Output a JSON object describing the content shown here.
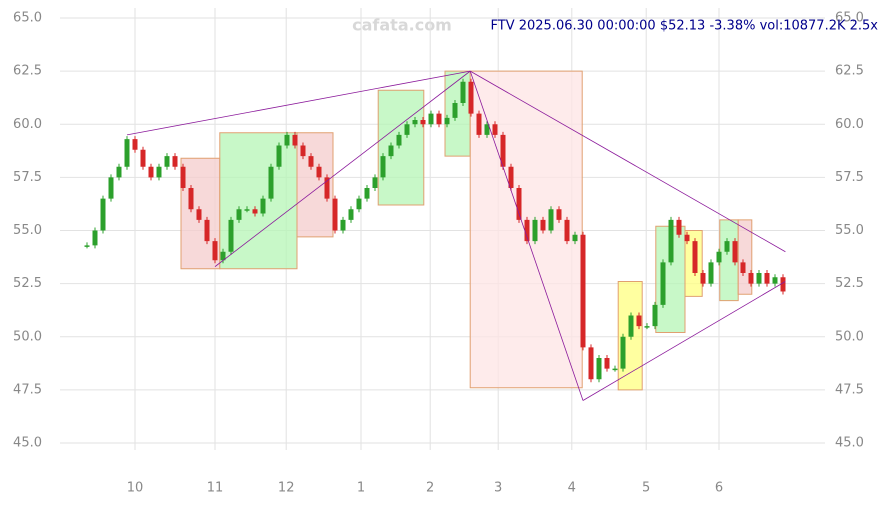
{
  "chart_data": {
    "type": "candlestick",
    "title": "FTV 2025.06.30 00:00:00 $52.13 -3.38% vol:10877.2K 2.5x",
    "watermark": "cafata.com",
    "up_color": "#2ca02c",
    "down_color": "#d62728",
    "closes": [
      54.3,
      55.0,
      56.5,
      57.5,
      58.0,
      59.3,
      58.8,
      58.0,
      57.5,
      58.0,
      58.5,
      58.0,
      57.0,
      56.0,
      55.5,
      54.5,
      53.6,
      54.0,
      55.5,
      56.0,
      56.0,
      55.8,
      56.5,
      58.0,
      59.0,
      59.5,
      59.0,
      58.5,
      58.0,
      57.5,
      56.5,
      55.0,
      55.5,
      56.0,
      56.5,
      57.0,
      57.5,
      58.5,
      59.0,
      59.5,
      60.0,
      60.2,
      60.0,
      60.5,
      60.0,
      60.3,
      61.0,
      62.0,
      60.5,
      59.5,
      60.0,
      59.5,
      58.0,
      57.0,
      55.5,
      54.5,
      55.5,
      55.0,
      56.0,
      55.5,
      54.5,
      54.8,
      49.5,
      48.0,
      49.0,
      48.5,
      48.5,
      50.0,
      51.0,
      50.5,
      50.5,
      51.5,
      53.5,
      55.5,
      54.8,
      54.5,
      53.0,
      52.5,
      53.5,
      54.0,
      54.5,
      53.5,
      53.0,
      52.5,
      53.0,
      52.5,
      52.8,
      52.13
    ],
    "zones": [
      {
        "x": [
          11.75,
          16.6
        ],
        "y": [
          58.4,
          53.2
        ],
        "color": "#f4cccc"
      },
      {
        "x": [
          16.6,
          26.25
        ],
        "y": [
          59.6,
          53.2
        ],
        "color": "#b6f5b6"
      },
      {
        "x": [
          26.25,
          30.75
        ],
        "y": [
          59.6,
          54.7
        ],
        "color": "#f4cccc"
      },
      {
        "x": [
          36.4,
          42.1
        ],
        "y": [
          61.6,
          56.2
        ],
        "color": "#b6f5b6"
      },
      {
        "x": [
          44.75,
          47.9
        ],
        "y": [
          62.5,
          58.5
        ],
        "color": "#b6f5b6"
      },
      {
        "x": [
          47.9,
          61.9
        ],
        "y": [
          62.5,
          47.6
        ],
        "color": "#fde4e4"
      },
      {
        "x": [
          66.4,
          69.4
        ],
        "y": [
          52.6,
          47.5
        ],
        "color": "#ffff80"
      },
      {
        "x": [
          71.1,
          74.75
        ],
        "y": [
          55.2,
          50.2
        ],
        "color": "#b6f5b6"
      },
      {
        "x": [
          74.75,
          76.9
        ],
        "y": [
          55.0,
          51.9
        ],
        "color": "#ffff80"
      },
      {
        "x": [
          79.1,
          81.4
        ],
        "y": [
          55.5,
          51.7
        ],
        "color": "#b6f5b6"
      },
      {
        "x": [
          81.4,
          83.1
        ],
        "y": [
          55.5,
          52.0
        ],
        "color": "#f4cccc"
      }
    ],
    "trend_lines": [
      {
        "x": [
          5,
          47.9
        ],
        "y": [
          59.5,
          62.5
        ]
      },
      {
        "x": [
          16,
          47.9
        ],
        "y": [
          53.3,
          62.5
        ]
      },
      {
        "x": [
          47.9,
          62
        ],
        "y": [
          62.5,
          47.0
        ]
      },
      {
        "x": [
          62,
          87.3
        ],
        "y": [
          47.0,
          52.6
        ]
      },
      {
        "x": [
          47.9,
          87.3
        ],
        "y": [
          62.5,
          54.0
        ]
      }
    ],
    "xlim": [
      -1,
      88
    ],
    "ylim": [
      45,
      65
    ],
    "xticks": [
      {
        "value": 6,
        "label": "10"
      },
      {
        "value": 16,
        "label": "11"
      },
      {
        "value": 24.9,
        "label": "12"
      },
      {
        "value": 34.25,
        "label": "1"
      },
      {
        "value": 42.9,
        "label": "2"
      },
      {
        "value": 51.4,
        "label": "3"
      },
      {
        "value": 60.6,
        "label": "4"
      },
      {
        "value": 69.9,
        "label": "5"
      },
      {
        "value": 79,
        "label": "6"
      }
    ],
    "yticks": [
      {
        "value": 45,
        "label": "45.0"
      },
      47.5,
      {
        "value": 50,
        "label": "50.0"
      },
      52.5,
      {
        "value": 55,
        "label": "55.0"
      },
      57.5,
      {
        "value": 60,
        "label": "60.0"
      },
      62.5,
      {
        "value": 65,
        "label": "65.0"
      }
    ],
    "grid": true
  }
}
